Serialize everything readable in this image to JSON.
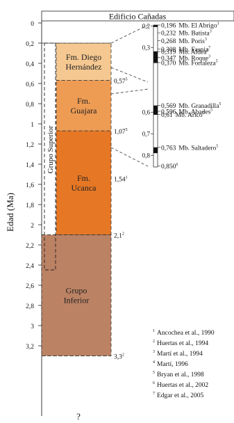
{
  "title": "Edificio Cañadas",
  "y_axis_label": "Edad (Ma)",
  "y_ticks": [
    "0",
    "0,2",
    "0,4",
    "0,6",
    "0,8",
    "1",
    "1,2",
    "1,4",
    "1,6",
    "1,8",
    "2",
    "2,2",
    "2,4",
    "2,6",
    "2,8",
    "3",
    "3,2"
  ],
  "group_superior_label": "Grupo Superior",
  "units": [
    {
      "id": "diego",
      "lines": [
        "Fm. Diego",
        "Hernández"
      ],
      "top_ma": 0.2,
      "bottom_ma": 0.57,
      "color": "#f5c891"
    },
    {
      "id": "guajara",
      "lines": [
        "Fm.",
        "Guajara"
      ],
      "top_ma": 0.57,
      "bottom_ma": 1.07,
      "color": "#ee9c54"
    },
    {
      "id": "ucanca",
      "lines": [
        "Fm.",
        "Ucanca"
      ],
      "top_ma": 1.07,
      "bottom_ma": 2.1,
      "color": "#e67725"
    },
    {
      "id": "inferior",
      "lines": [
        "Grupo",
        "Inferior"
      ],
      "top_ma": 2.1,
      "bottom_ma": 3.3,
      "color": "#bb8264"
    }
  ],
  "boundary_labels": [
    {
      "text": "0,57",
      "sup": "5",
      "ma": 0.57
    },
    {
      "text": "1,07",
      "sup": "5",
      "ma": 1.07
    },
    {
      "text": "1,54",
      "sup": "1",
      "ma": 1.54
    },
    {
      "text": "2,1",
      "sup": "2",
      "ma": 2.1
    },
    {
      "text": "3,3",
      "sup": "2",
      "ma": 3.3
    }
  ],
  "bottom_question": "?",
  "detail_ticks": [
    "0,2",
    "0,3",
    "0,6",
    "0,7",
    "0,8"
  ],
  "members": [
    {
      "age": "0,196",
      "name": "Mb. El Abrigo",
      "sup": "3"
    },
    {
      "age": "0,232",
      "name": "Mb. Batista",
      "sup": "3"
    },
    {
      "age": "0,268",
      "name": "Mb. Poris",
      "sup": "3"
    },
    {
      "age": "0,308",
      "name": "Mb. Fasnia",
      "sup": "7"
    },
    {
      "age": "0,319",
      "name": "Mb. Aldea",
      "sup": "3"
    },
    {
      "age": "0,347",
      "name": "Mb. Roque",
      "sup": "3"
    },
    {
      "age": "0,370",
      "name": "Mb. Fortaleza",
      "sup": "5"
    },
    {
      "age": "0,569",
      "name": "Mb. Granadilla",
      "sup": "5"
    },
    {
      "age": "0,596",
      "name": "Mb. Abades",
      "sup": "5"
    },
    {
      "age": "0,61",
      "name": "Mb. Arico",
      "sup": "5"
    },
    {
      "age": "0,763",
      "name": "Mb. Saltadero",
      "sup": "5"
    },
    {
      "age": "0,850",
      "name": "",
      "sup": "6"
    }
  ],
  "references": [
    {
      "num": "1",
      "text": "Ancochea et al., 1990"
    },
    {
      "num": "2",
      "text": "Huertas et al., 1994"
    },
    {
      "num": "3",
      "text": "Martí et al., 1994"
    },
    {
      "num": "4",
      "text": "Martí, 1996"
    },
    {
      "num": "5",
      "text": "Bryan et al., 1998"
    },
    {
      "num": "6",
      "text": "Huertas et al., 2002"
    },
    {
      "num": "7",
      "text": "Edgar et al., 2005"
    }
  ]
}
